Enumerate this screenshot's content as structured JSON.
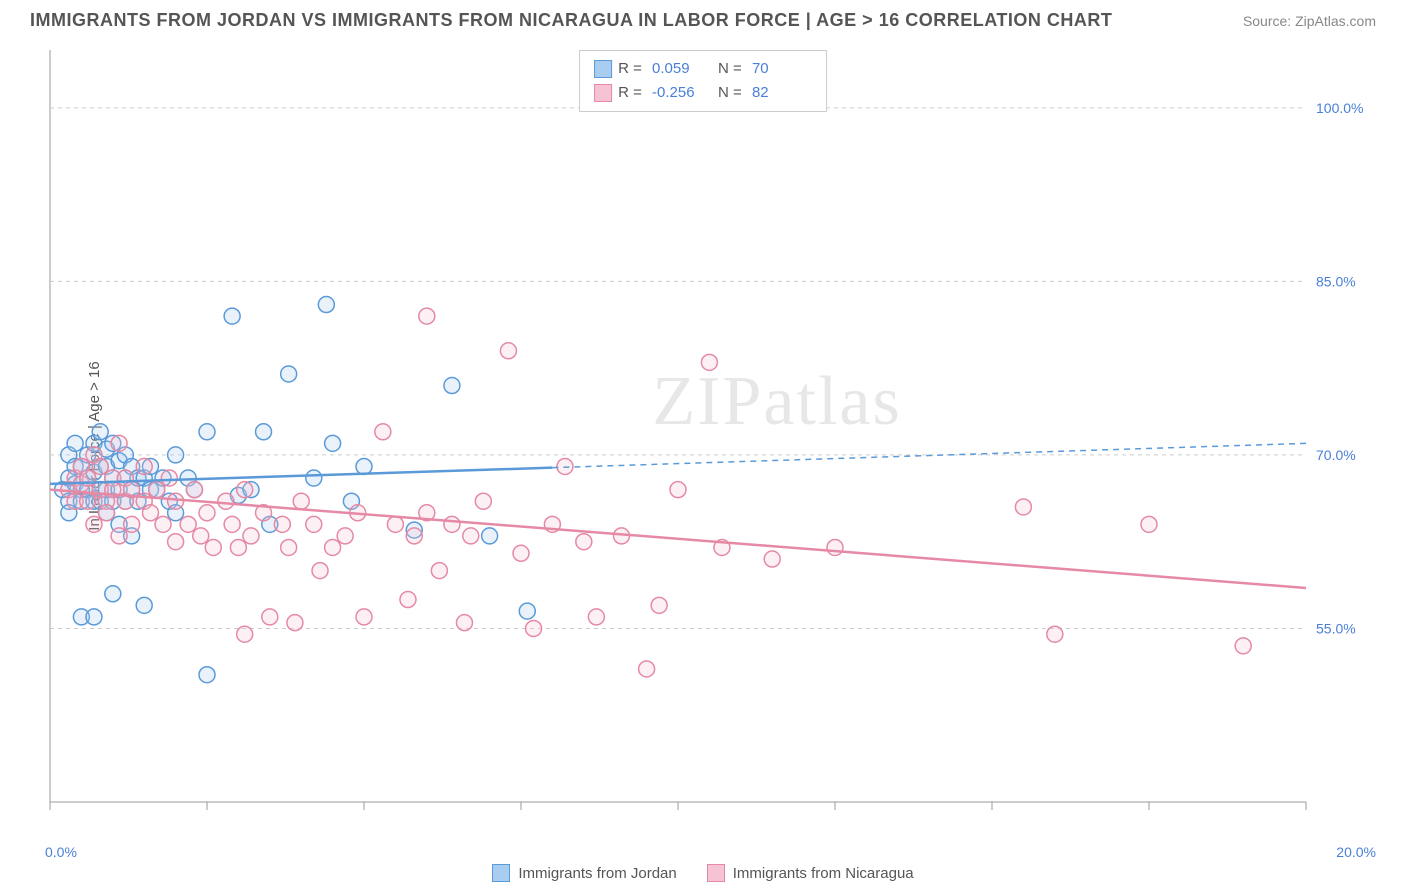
{
  "header": {
    "title": "IMMIGRANTS FROM JORDAN VS IMMIGRANTS FROM NICARAGUA IN LABOR FORCE | AGE > 16 CORRELATION CHART",
    "source": "Source: ZipAtlas.com"
  },
  "watermark": "ZIPatlas",
  "chart": {
    "type": "scatter",
    "ylabel": "In Labor Force | Age > 16",
    "xlim": [
      0,
      20
    ],
    "ylim": [
      40,
      105
    ],
    "x_ticks": [
      0,
      2.5,
      5,
      7.5,
      10,
      12.5,
      15,
      17.5,
      20
    ],
    "x_tick_labels": {
      "0": "0.0%",
      "20": "20.0%"
    },
    "y_gridlines": [
      55,
      70,
      85,
      100
    ],
    "y_tick_labels": {
      "55": "55.0%",
      "70": "70.0%",
      "85": "85.0%",
      "100": "100.0%"
    },
    "background_color": "#ffffff",
    "grid_color": "#cccccc",
    "grid_dash": "4 4",
    "axis_color": "#999999",
    "tick_label_color": "#4a7fd8",
    "label_fontsize": 14,
    "marker_radius": 8,
    "marker_stroke_width": 1.5,
    "marker_fill_opacity": 0.25,
    "series": [
      {
        "name": "Immigrants from Jordan",
        "color": "#5a9ad8",
        "fill": "#a9cdf0",
        "R": "0.059",
        "N": "70",
        "trend": {
          "y_at_x0": 67.5,
          "y_at_xmax": 71,
          "solid_until_x": 8
        },
        "points": [
          [
            0.2,
            67
          ],
          [
            0.3,
            66
          ],
          [
            0.3,
            68
          ],
          [
            0.3,
            70
          ],
          [
            0.3,
            65
          ],
          [
            0.4,
            67.5
          ],
          [
            0.4,
            69
          ],
          [
            0.4,
            71
          ],
          [
            0.5,
            67
          ],
          [
            0.5,
            66
          ],
          [
            0.5,
            69
          ],
          [
            0.5,
            56
          ],
          [
            0.6,
            68
          ],
          [
            0.6,
            70
          ],
          [
            0.6,
            67
          ],
          [
            0.7,
            66
          ],
          [
            0.7,
            68.5
          ],
          [
            0.7,
            71
          ],
          [
            0.7,
            56
          ],
          [
            0.8,
            69
          ],
          [
            0.8,
            67
          ],
          [
            0.8,
            66
          ],
          [
            0.8,
            72
          ],
          [
            0.9,
            67
          ],
          [
            0.9,
            69
          ],
          [
            0.9,
            70.5
          ],
          [
            0.9,
            65
          ],
          [
            1.0,
            68
          ],
          [
            1.0,
            66
          ],
          [
            1.0,
            71
          ],
          [
            1.0,
            58
          ],
          [
            1.1,
            67
          ],
          [
            1.1,
            69.5
          ],
          [
            1.1,
            64
          ],
          [
            1.2,
            68
          ],
          [
            1.2,
            70
          ],
          [
            1.2,
            66
          ],
          [
            1.3,
            67
          ],
          [
            1.3,
            69
          ],
          [
            1.3,
            63
          ],
          [
            1.4,
            68
          ],
          [
            1.4,
            66
          ],
          [
            1.5,
            57
          ],
          [
            1.5,
            68
          ],
          [
            1.6,
            67
          ],
          [
            1.6,
            69
          ],
          [
            1.7,
            67
          ],
          [
            1.8,
            68
          ],
          [
            1.9,
            66
          ],
          [
            2.0,
            70
          ],
          [
            2.0,
            65
          ],
          [
            2.2,
            68
          ],
          [
            2.3,
            67
          ],
          [
            2.5,
            51
          ],
          [
            2.5,
            72
          ],
          [
            2.9,
            82
          ],
          [
            3.0,
            66.5
          ],
          [
            3.2,
            67
          ],
          [
            3.4,
            72
          ],
          [
            3.5,
            64
          ],
          [
            3.8,
            77
          ],
          [
            4.2,
            68
          ],
          [
            4.4,
            83
          ],
          [
            4.5,
            71
          ],
          [
            4.8,
            66
          ],
          [
            5.0,
            69
          ],
          [
            5.8,
            63.5
          ],
          [
            6.4,
            76
          ],
          [
            7.0,
            63
          ],
          [
            7.6,
            56.5
          ]
        ]
      },
      {
        "name": "Immigrants from Nicaragua",
        "color": "#e589a5",
        "fill": "#f5c3d3",
        "R": "-0.256",
        "N": "82",
        "trend": {
          "y_at_x0": 67,
          "y_at_xmax": 58.5,
          "solid_until_x": 20
        },
        "points": [
          [
            0.3,
            67
          ],
          [
            0.4,
            66
          ],
          [
            0.4,
            68
          ],
          [
            0.5,
            67.5
          ],
          [
            0.5,
            69
          ],
          [
            0.6,
            66
          ],
          [
            0.6,
            68
          ],
          [
            0.7,
            70
          ],
          [
            0.7,
            64
          ],
          [
            0.8,
            67
          ],
          [
            0.8,
            69
          ],
          [
            0.9,
            66
          ],
          [
            0.9,
            65
          ],
          [
            1.0,
            68
          ],
          [
            1.0,
            67
          ],
          [
            1.1,
            63
          ],
          [
            1.1,
            71
          ],
          [
            1.2,
            66
          ],
          [
            1.2,
            68
          ],
          [
            1.3,
            64
          ],
          [
            1.3,
            67
          ],
          [
            1.5,
            69
          ],
          [
            1.5,
            66
          ],
          [
            1.6,
            65
          ],
          [
            1.7,
            67
          ],
          [
            1.8,
            64
          ],
          [
            1.9,
            68
          ],
          [
            2.0,
            66
          ],
          [
            2.0,
            62.5
          ],
          [
            2.2,
            64
          ],
          [
            2.3,
            67
          ],
          [
            2.4,
            63
          ],
          [
            2.5,
            65
          ],
          [
            2.6,
            62
          ],
          [
            2.8,
            66
          ],
          [
            2.9,
            64
          ],
          [
            3.0,
            62
          ],
          [
            3.1,
            67
          ],
          [
            3.1,
            54.5
          ],
          [
            3.2,
            63
          ],
          [
            3.4,
            65
          ],
          [
            3.5,
            56
          ],
          [
            3.7,
            64
          ],
          [
            3.8,
            62
          ],
          [
            3.9,
            55.5
          ],
          [
            4.0,
            66
          ],
          [
            4.2,
            64
          ],
          [
            4.3,
            60
          ],
          [
            4.5,
            62
          ],
          [
            4.7,
            63
          ],
          [
            4.9,
            65
          ],
          [
            5.0,
            56
          ],
          [
            5.3,
            72
          ],
          [
            5.5,
            64
          ],
          [
            5.7,
            57.5
          ],
          [
            5.8,
            63
          ],
          [
            6.0,
            82
          ],
          [
            6.0,
            65
          ],
          [
            6.2,
            60
          ],
          [
            6.4,
            64
          ],
          [
            6.6,
            55.5
          ],
          [
            6.7,
            63
          ],
          [
            6.9,
            66
          ],
          [
            7.3,
            79
          ],
          [
            7.5,
            61.5
          ],
          [
            7.7,
            55
          ],
          [
            8.0,
            64
          ],
          [
            8.2,
            69
          ],
          [
            8.5,
            62.5
          ],
          [
            8.7,
            56
          ],
          [
            9.1,
            63
          ],
          [
            9.5,
            51.5
          ],
          [
            9.7,
            57
          ],
          [
            10.0,
            67
          ],
          [
            10.5,
            78
          ],
          [
            10.7,
            62
          ],
          [
            11.5,
            61
          ],
          [
            12.5,
            62
          ],
          [
            15.5,
            65.5
          ],
          [
            16.0,
            54.5
          ],
          [
            17.5,
            64
          ],
          [
            19.0,
            53.5
          ]
        ]
      }
    ]
  },
  "bottom_legend": [
    {
      "label": "Immigrants from Jordan",
      "fill": "#a9cdf0",
      "stroke": "#5a9ad8"
    },
    {
      "label": "Immigrants from Nicaragua",
      "fill": "#f5c3d3",
      "stroke": "#e589a5"
    }
  ]
}
